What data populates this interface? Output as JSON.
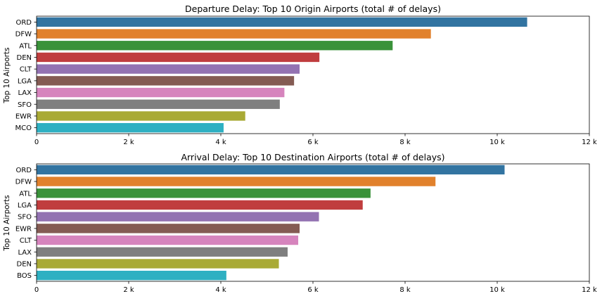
{
  "chart_data": [
    {
      "type": "bar",
      "orientation": "horizontal",
      "title": "Departure Delay: Top 10 Origin Airports (total # of delays)",
      "xlabel": "",
      "ylabel": "Top 10 Airports",
      "xlim": [
        0,
        12000
      ],
      "xticks": [
        0,
        2000,
        4000,
        6000,
        8000,
        10000,
        12000
      ],
      "xtick_labels": [
        "0",
        "2 k",
        "4 k",
        "6 k",
        "8 k",
        "10 k",
        "12 k"
      ],
      "grid": false,
      "legend": "none",
      "categories": [
        "ORD",
        "DFW",
        "ATL",
        "DEN",
        "CLT",
        "LGA",
        "LAX",
        "SFO",
        "EWR",
        "MCO"
      ],
      "values": [
        10650,
        8560,
        7730,
        6140,
        5710,
        5590,
        5380,
        5280,
        4530,
        4060
      ]
    },
    {
      "type": "bar",
      "orientation": "horizontal",
      "title": "Arrival Delay: Top 10 Destination Airports (total # of delays)",
      "xlabel": "",
      "ylabel": "Top 10 Airports",
      "xlim": [
        0,
        12000
      ],
      "xticks": [
        0,
        2000,
        4000,
        6000,
        8000,
        10000,
        12000
      ],
      "xtick_labels": [
        "0",
        "2 k",
        "4 k",
        "6 k",
        "8 k",
        "10 k",
        "12 k"
      ],
      "grid": false,
      "legend": "none",
      "categories": [
        "ORD",
        "DFW",
        "ATL",
        "LGA",
        "SFO",
        "EWR",
        "CLT",
        "LAX",
        "DEN",
        "BOS"
      ],
      "values": [
        10160,
        8660,
        7250,
        7080,
        6130,
        5710,
        5680,
        5450,
        5260,
        4120
      ]
    }
  ],
  "colors": {
    "palette": [
      "#3274a1",
      "#e1812c",
      "#3a923a",
      "#c03d3e",
      "#9372b2",
      "#845b53",
      "#d684bd",
      "#7f7f7f",
      "#a9aa35",
      "#2eb0c2"
    ]
  }
}
